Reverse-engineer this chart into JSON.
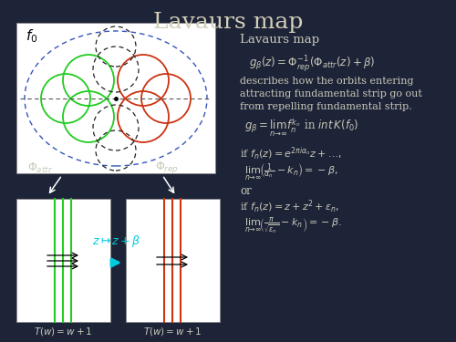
{
  "title": "Lavaurs map",
  "bg_color": "#1e2438",
  "text_color": "#c8c8b8",
  "title_color": "#d4d0b8",
  "formula1": "$g_{\\beta}(z) = \\Phi_{rep}^{-1}(\\Phi_{attr}(z) + \\beta)$",
  "desc": "describes how the orbits entering\nattracting fundamental strip go out\nfrom repelling fundamental strip.",
  "formula2": "$g_{\\beta} = \\lim_{n\\to\\infty} f_n^{k_n}$ in $int\\,K(f_0)$",
  "formula3a": "if $f_n(z) = e^{2\\pi i\\alpha_n} z + \\ldots,$",
  "formula3b": "$\\lim_{n\\to\\infty}\\!\\left(\\frac{1}{\\alpha_n} - k_n\\right) = -\\beta,$",
  "formula4a": "or",
  "formula4b": "if $f_n(z) = z + z^2 + \\varepsilon_n,$",
  "formula4c": "$\\lim_{n\\to\\infty}\\!\\left(\\frac{\\pi}{\\sqrt{\\varepsilon_n}} - k_n\\right) = -\\beta.$",
  "label_f0": "$f_0$",
  "label_phi_attr": "$\\Phi_{attr}$",
  "label_phi_rep": "$\\Phi_{rep}$",
  "label_Tw1": "$T(w) = w+1$",
  "label_Tw2": "$T(w) = w+1$",
  "label_map": "$z \\mapsto z + \\beta$",
  "lavaurs_map_label": "Lavaurs map",
  "green_color": "#22cc22",
  "red_color": "#cc3311",
  "cyan_color": "#00ccdd",
  "blue_ellipse": "#3355bb",
  "panel_edge": "#888888",
  "white": "#ffffff",
  "black": "#000000"
}
